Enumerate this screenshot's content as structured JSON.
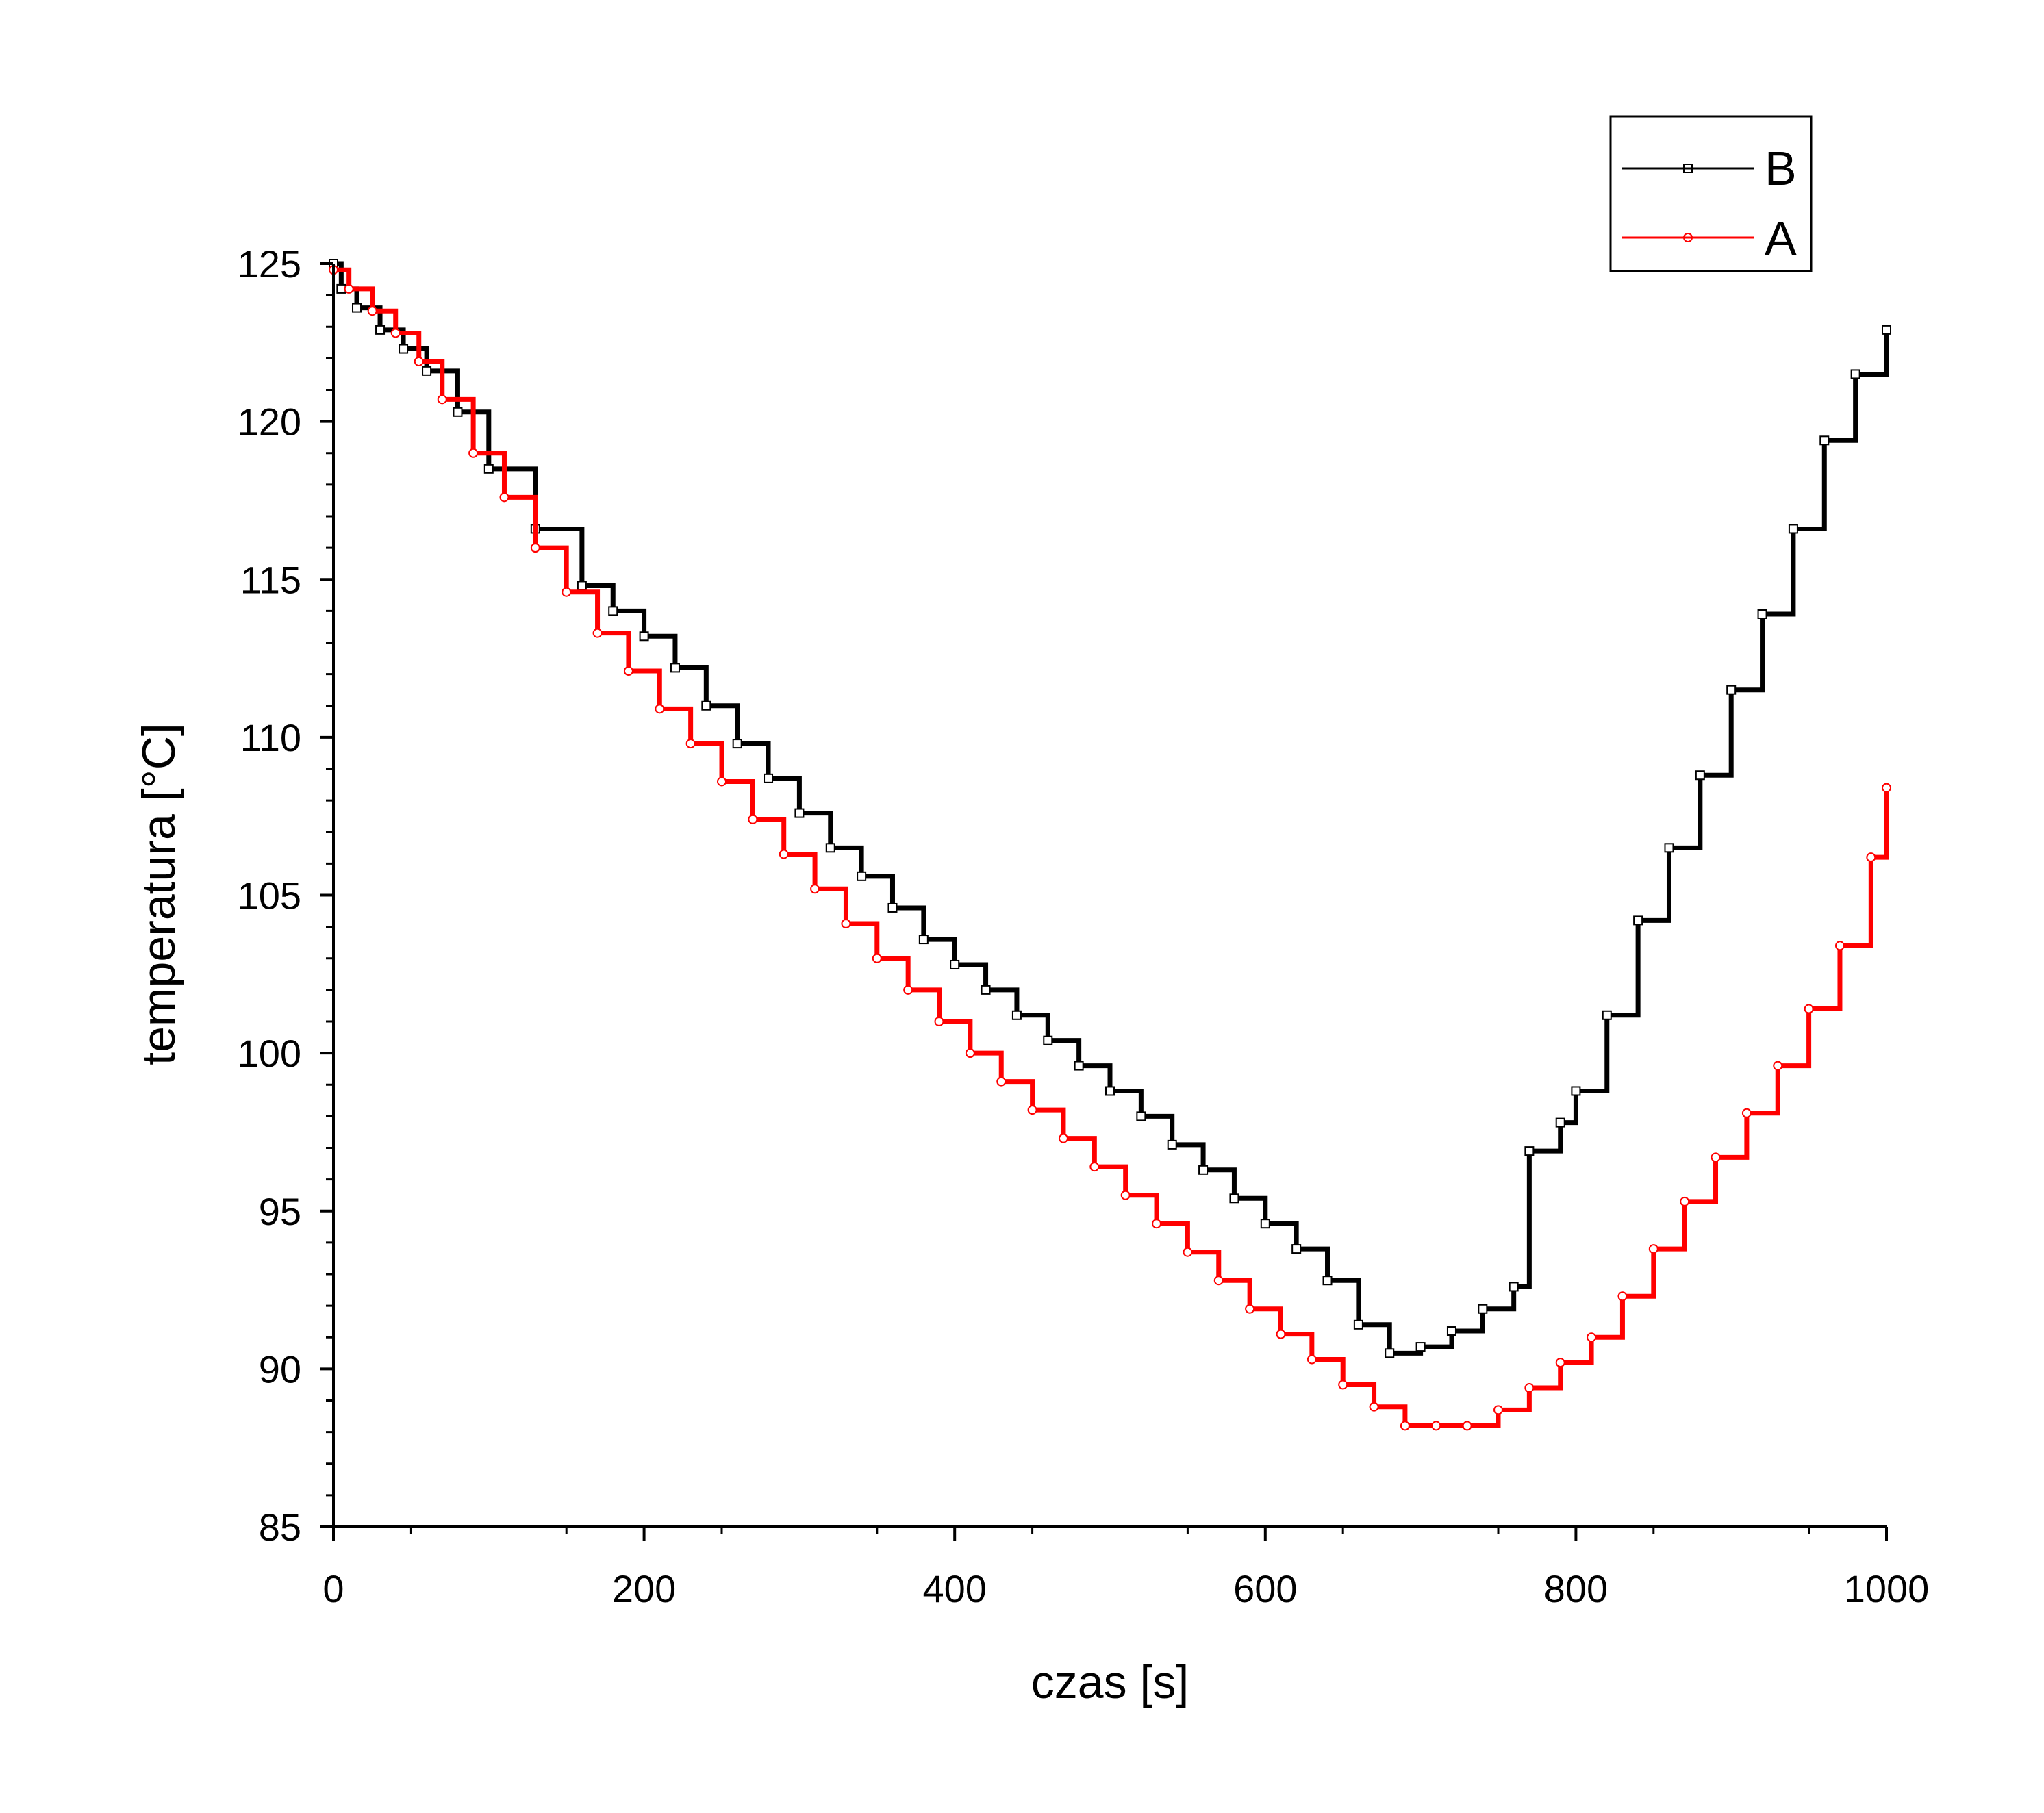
{
  "chart_data": {
    "type": "line",
    "xlabel": "czas [s]",
    "ylabel": "temperatura [°C]",
    "xlim": [
      0,
      1000
    ],
    "ylim": [
      85,
      125
    ],
    "x_ticks": [
      "0",
      "200",
      "400",
      "600",
      "800",
      "1000"
    ],
    "y_ticks": [
      "85",
      "90",
      "95",
      "100",
      "105",
      "110",
      "115",
      "120",
      "125"
    ],
    "grid": false,
    "legend_position": "top-right",
    "series": [
      {
        "name": "B",
        "color": "#000000",
        "marker": "square-open",
        "points": [
          [
            0,
            125.0
          ],
          [
            5,
            124.2
          ],
          [
            15,
            123.6
          ],
          [
            30,
            122.9
          ],
          [
            45,
            122.3
          ],
          [
            60,
            121.6
          ],
          [
            80,
            120.3
          ],
          [
            100,
            118.5
          ],
          [
            130,
            116.6
          ],
          [
            160,
            114.8
          ],
          [
            180,
            114.0
          ],
          [
            200,
            113.2
          ],
          [
            220,
            112.2
          ],
          [
            240,
            111.0
          ],
          [
            260,
            109.8
          ],
          [
            280,
            108.7
          ],
          [
            300,
            107.6
          ],
          [
            320,
            106.5
          ],
          [
            340,
            105.6
          ],
          [
            360,
            104.6
          ],
          [
            380,
            103.6
          ],
          [
            400,
            102.8
          ],
          [
            420,
            102.0
          ],
          [
            440,
            101.2
          ],
          [
            460,
            100.4
          ],
          [
            480,
            99.6
          ],
          [
            500,
            98.8
          ],
          [
            520,
            98.0
          ],
          [
            540,
            97.1
          ],
          [
            560,
            96.3
          ],
          [
            580,
            95.4
          ],
          [
            600,
            94.6
          ],
          [
            620,
            93.8
          ],
          [
            640,
            92.8
          ],
          [
            660,
            91.4
          ],
          [
            680,
            90.5
          ],
          [
            700,
            90.7
          ],
          [
            720,
            91.2
          ],
          [
            740,
            91.9
          ],
          [
            760,
            92.6
          ],
          [
            770,
            96.9
          ],
          [
            790,
            97.8
          ],
          [
            800,
            98.8
          ],
          [
            820,
            101.2
          ],
          [
            840,
            104.2
          ],
          [
            860,
            106.5
          ],
          [
            880,
            108.8
          ],
          [
            900,
            111.5
          ],
          [
            920,
            113.9
          ],
          [
            940,
            116.6
          ],
          [
            960,
            119.4
          ],
          [
            980,
            121.5
          ],
          [
            1000,
            122.9
          ]
        ]
      },
      {
        "name": "A",
        "color": "#ff0000",
        "marker": "circle-open",
        "points": [
          [
            0,
            124.8
          ],
          [
            10,
            124.2
          ],
          [
            25,
            123.5
          ],
          [
            40,
            122.8
          ],
          [
            55,
            121.9
          ],
          [
            70,
            120.7
          ],
          [
            90,
            119.0
          ],
          [
            110,
            117.6
          ],
          [
            130,
            116.0
          ],
          [
            150,
            114.6
          ],
          [
            170,
            113.3
          ],
          [
            190,
            112.1
          ],
          [
            210,
            110.9
          ],
          [
            230,
            109.8
          ],
          [
            250,
            108.6
          ],
          [
            270,
            107.4
          ],
          [
            290,
            106.3
          ],
          [
            310,
            105.2
          ],
          [
            330,
            104.1
          ],
          [
            350,
            103.0
          ],
          [
            370,
            102.0
          ],
          [
            390,
            101.0
          ],
          [
            410,
            100.0
          ],
          [
            430,
            99.1
          ],
          [
            450,
            98.2
          ],
          [
            470,
            97.3
          ],
          [
            490,
            96.4
          ],
          [
            510,
            95.5
          ],
          [
            530,
            94.6
          ],
          [
            550,
            93.7
          ],
          [
            570,
            92.8
          ],
          [
            590,
            91.9
          ],
          [
            610,
            91.1
          ],
          [
            630,
            90.3
          ],
          [
            650,
            89.5
          ],
          [
            670,
            88.8
          ],
          [
            690,
            88.2
          ],
          [
            710,
            88.2
          ],
          [
            730,
            88.2
          ],
          [
            750,
            88.7
          ],
          [
            770,
            89.4
          ],
          [
            790,
            90.2
          ],
          [
            810,
            91.0
          ],
          [
            830,
            92.3
          ],
          [
            850,
            93.8
          ],
          [
            870,
            95.3
          ],
          [
            890,
            96.7
          ],
          [
            910,
            98.1
          ],
          [
            930,
            99.6
          ],
          [
            950,
            101.4
          ],
          [
            970,
            103.4
          ],
          [
            990,
            106.2
          ],
          [
            1000,
            108.4
          ]
        ]
      }
    ]
  }
}
